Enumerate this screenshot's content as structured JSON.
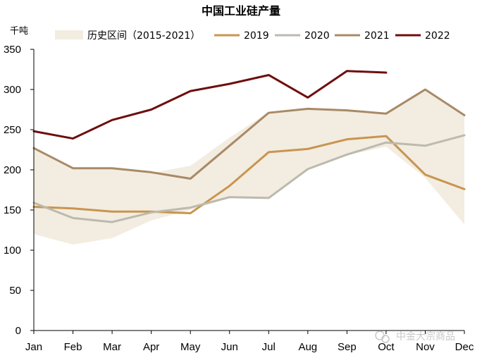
{
  "chart_data": {
    "type": "line",
    "title": "中国工业硅产量",
    "ylabel": "千吨",
    "xlabel": "",
    "ylim": [
      0,
      350
    ],
    "yticks": [
      0,
      50,
      100,
      150,
      200,
      250,
      300,
      350
    ],
    "categories": [
      "Jan",
      "Feb",
      "Mar",
      "Apr",
      "May",
      "Jun",
      "Jul",
      "Aug",
      "Sep",
      "Oct",
      "Nov",
      "Dec"
    ],
    "band": {
      "name": "历史区间（2015-2021）",
      "color": "#f3ece1",
      "upper": [
        228,
        202,
        203,
        196,
        205,
        240,
        272,
        277,
        274,
        270,
        300,
        268
      ],
      "lower": [
        120,
        107,
        115,
        137,
        150,
        165,
        165,
        200,
        218,
        229,
        190,
        132
      ]
    },
    "series": [
      {
        "name": "2019",
        "color": "#c8954f",
        "values": [
          154,
          152,
          148,
          148,
          146,
          180,
          222,
          226,
          238,
          242,
          194,
          176
        ]
      },
      {
        "name": "2020",
        "color": "#bcbaad",
        "values": [
          159,
          140,
          135,
          147,
          153,
          166,
          165,
          201,
          219,
          234,
          230,
          243
        ]
      },
      {
        "name": "2021",
        "color": "#a88a66",
        "values": [
          227,
          202,
          202,
          197,
          189,
          230,
          271,
          276,
          274,
          270,
          300,
          268
        ]
      },
      {
        "name": "2022",
        "color": "#6e0e0e",
        "values": [
          248,
          239,
          262,
          275,
          298,
          307,
          318,
          290,
          323,
          321,
          null,
          null
        ]
      }
    ],
    "grid": false,
    "legend_position": "top"
  },
  "watermark": "中金大宗商品"
}
